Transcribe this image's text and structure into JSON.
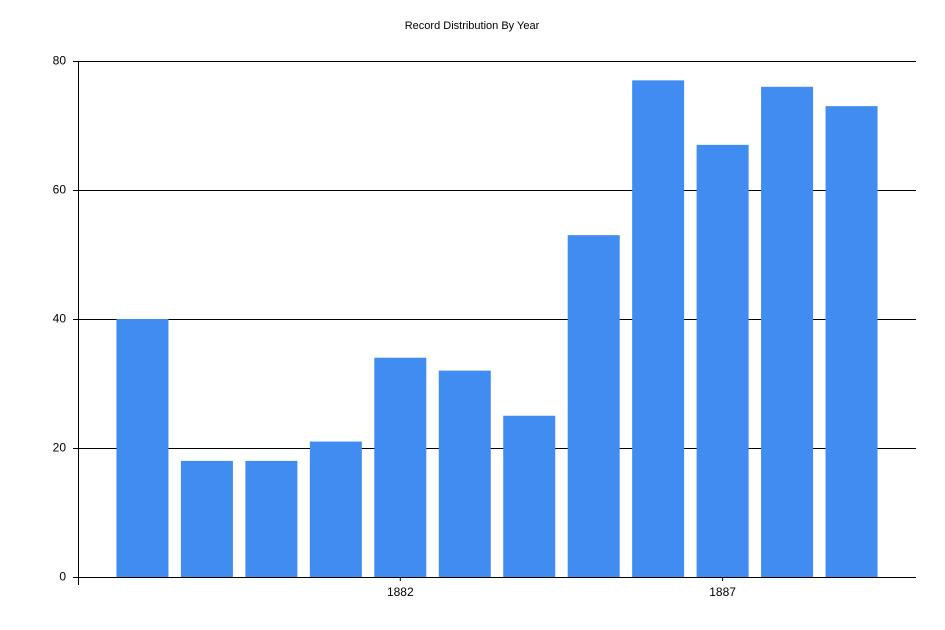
{
  "chart_data": {
    "type": "bar",
    "title": "Record Distribution By Year",
    "categories": [
      null,
      null,
      null,
      null,
      "1882",
      null,
      null,
      null,
      null,
      "1887",
      null,
      null
    ],
    "values": [
      40,
      18,
      18,
      21,
      34,
      32,
      25,
      53,
      77,
      67,
      76,
      73
    ],
    "color": "#418cf0",
    "ylim": [
      0,
      80
    ],
    "yticks": [
      0,
      20,
      40,
      60,
      80
    ],
    "grid": true
  }
}
